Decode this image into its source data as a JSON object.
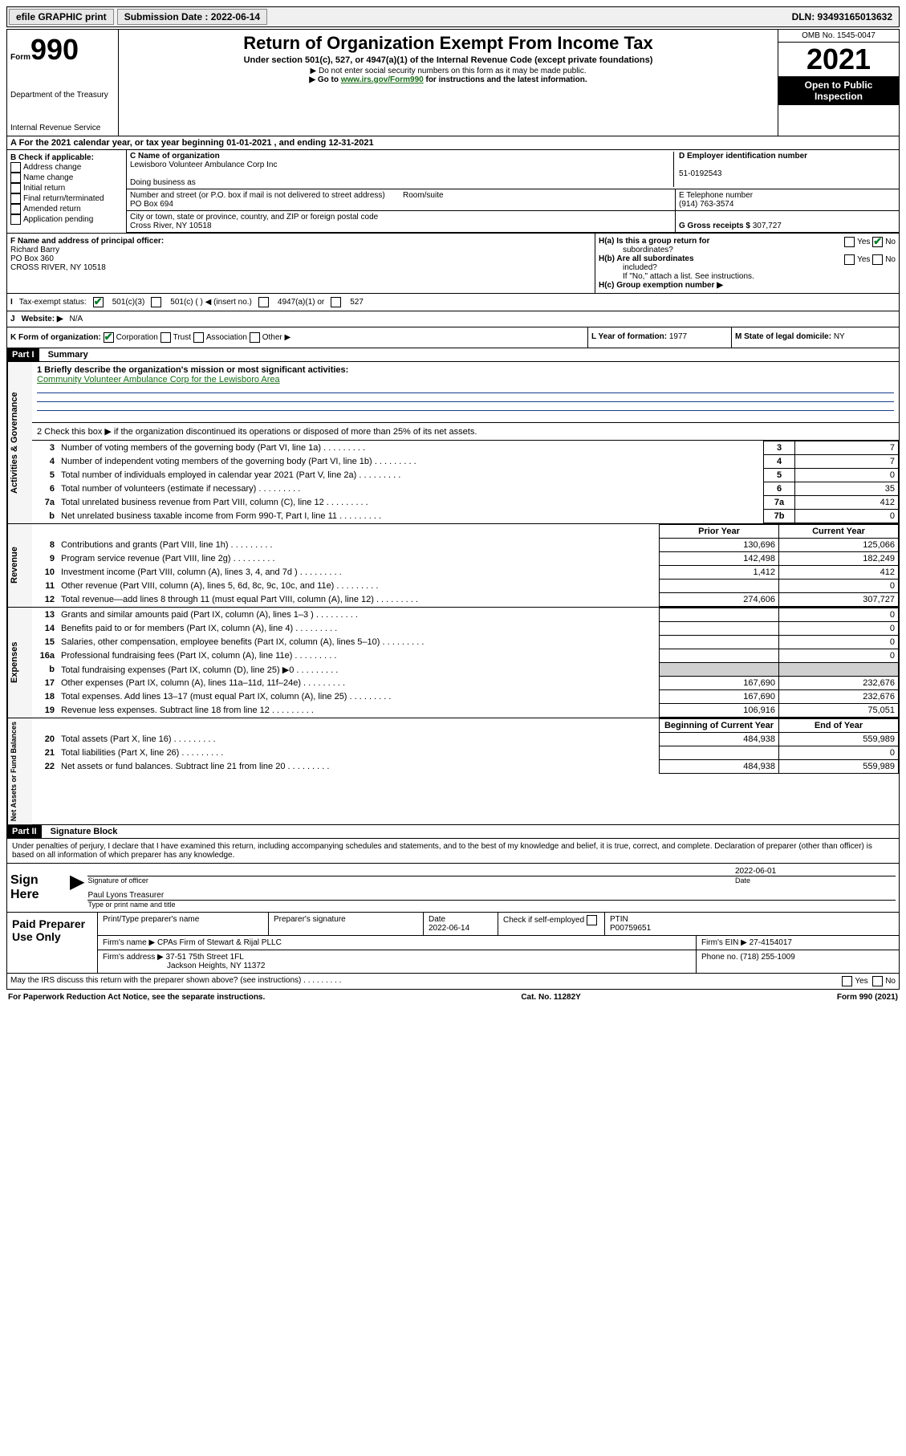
{
  "colors": {
    "text": "#000000",
    "background": "#ffffff",
    "link": "#1a6e1a",
    "rule": "#1a3c8c",
    "shade": "#d0d0d0",
    "check": "#0a7d2c",
    "bar_bg": "#f0f0f0"
  },
  "topbar": {
    "efile": "efile GRAPHIC print",
    "sub_label": "Submission Date :",
    "sub_date": "2022-06-14",
    "dln": "DLN: 93493165013632"
  },
  "header": {
    "form_word": "Form",
    "form_num": "990",
    "title": "Return of Organization Exempt From Income Tax",
    "subtitle": "Under section 501(c), 527, or 4947(a)(1) of the Internal Revenue Code (except private foundations)",
    "note1": "▶ Do not enter social security numbers on this form as it may be made public.",
    "note2_pre": "▶ Go to ",
    "note2_link": "www.irs.gov/Form990",
    "note2_post": " for instructions and the latest information.",
    "dept": "Department of the Treasury",
    "irs": "Internal Revenue Service",
    "omb": "OMB No. 1545-0047",
    "year": "2021",
    "inspect1": "Open to Public",
    "inspect2": "Inspection"
  },
  "row_a": "A For the 2021 calendar year, or tax year beginning 01-01-2021   , and ending 12-31-2021",
  "section_b": {
    "label": "B Check if applicable:",
    "items": [
      "Address change",
      "Name change",
      "Initial return",
      "Final return/terminated",
      "Amended return",
      "Application pending"
    ]
  },
  "section_c": {
    "name_label": "C Name of organization",
    "name": "Lewisboro Volunteer Ambulance Corp Inc",
    "dba_label": "Doing business as",
    "street_label": "Number and street (or P.O. box if mail is not delivered to street address)",
    "street": "PO Box 694",
    "room_label": "Room/suite",
    "city_label": "City or town, state or province, country, and ZIP or foreign postal code",
    "city": "Cross River, NY  10518"
  },
  "section_d": {
    "label": "D Employer identification number",
    "ein": "51-0192543"
  },
  "section_e": {
    "label": "E Telephone number",
    "phone": "(914) 763-3574"
  },
  "section_g": {
    "label": "G Gross receipts $",
    "amount": "307,727"
  },
  "section_f": {
    "label": "F Name and address of principal officer:",
    "name": "Richard Barry",
    "addr1": "PO Box 360",
    "addr2": "CROSS RIVER, NY  10518"
  },
  "section_h": {
    "ha1": "H(a)  Is this a group return for",
    "ha2": "subordinates?",
    "hb1": "H(b)  Are all subordinates",
    "hb2": "included?",
    "hb_note": "If \"No,\" attach a list. See instructions.",
    "hc": "H(c)  Group exemption number ▶",
    "yes": "Yes",
    "no": "No"
  },
  "row_i": {
    "label": "Tax-exempt status:",
    "opt1": "501(c)(3)",
    "opt2": "501(c) (   ) ◀ (insert no.)",
    "opt3": "4947(a)(1) or",
    "opt4": "527"
  },
  "row_j": {
    "label": "Website: ▶",
    "value": "N/A"
  },
  "row_k": {
    "label": "K Form of organization:",
    "opts": [
      "Corporation",
      "Trust",
      "Association",
      "Other ▶"
    ]
  },
  "row_l": {
    "label": "L Year of formation:",
    "value": "1977"
  },
  "row_m": {
    "label": "M State of legal domicile:",
    "value": "NY"
  },
  "part1": {
    "tag": "Part I",
    "title": "Summary"
  },
  "summary": {
    "line1_label": "1  Briefly describe the organization's mission or most significant activities:",
    "line1_text": "Community Volunteer Ambulance Corp for the Lewisboro Area",
    "line2": "2  Check this box ▶      if the organization discontinued its operations or disposed of more than 25% of its net assets.",
    "gov_lines": [
      {
        "n": "3",
        "desc": "Number of voting members of the governing body (Part VI, line 1a)",
        "box": "3",
        "val": "7"
      },
      {
        "n": "4",
        "desc": "Number of independent voting members of the governing body (Part VI, line 1b)",
        "box": "4",
        "val": "7"
      },
      {
        "n": "5",
        "desc": "Total number of individuals employed in calendar year 2021 (Part V, line 2a)",
        "box": "5",
        "val": "0"
      },
      {
        "n": "6",
        "desc": "Total number of volunteers (estimate if necessary)",
        "box": "6",
        "val": "35"
      },
      {
        "n": "7a",
        "desc": "Total unrelated business revenue from Part VIII, column (C), line 12",
        "box": "7a",
        "val": "412"
      },
      {
        "n": "b",
        "desc": "Net unrelated business taxable income from Form 990-T, Part I, line 11",
        "box": "7b",
        "val": "0"
      }
    ],
    "col_headers": {
      "prior": "Prior Year",
      "current": "Current Year"
    },
    "rev_lines": [
      {
        "n": "8",
        "desc": "Contributions and grants (Part VIII, line 1h)",
        "pr": "130,696",
        "cur": "125,066"
      },
      {
        "n": "9",
        "desc": "Program service revenue (Part VIII, line 2g)",
        "pr": "142,498",
        "cur": "182,249"
      },
      {
        "n": "10",
        "desc": "Investment income (Part VIII, column (A), lines 3, 4, and 7d )",
        "pr": "1,412",
        "cur": "412"
      },
      {
        "n": "11",
        "desc": "Other revenue (Part VIII, column (A), lines 5, 6d, 8c, 9c, 10c, and 11e)",
        "pr": "",
        "cur": "0"
      },
      {
        "n": "12",
        "desc": "Total revenue—add lines 8 through 11 (must equal Part VIII, column (A), line 12)",
        "pr": "274,606",
        "cur": "307,727"
      }
    ],
    "exp_lines": [
      {
        "n": "13",
        "desc": "Grants and similar amounts paid (Part IX, column (A), lines 1–3 )",
        "pr": "",
        "cur": "0"
      },
      {
        "n": "14",
        "desc": "Benefits paid to or for members (Part IX, column (A), line 4)",
        "pr": "",
        "cur": "0"
      },
      {
        "n": "15",
        "desc": "Salaries, other compensation, employee benefits (Part IX, column (A), lines 5–10)",
        "pr": "",
        "cur": "0"
      },
      {
        "n": "16a",
        "desc": "Professional fundraising fees (Part IX, column (A), line 11e)",
        "pr": "",
        "cur": "0"
      },
      {
        "n": "b",
        "desc": "Total fundraising expenses (Part IX, column (D), line 25) ▶0",
        "pr": "shade",
        "cur": "shade"
      },
      {
        "n": "17",
        "desc": "Other expenses (Part IX, column (A), lines 11a–11d, 11f–24e)",
        "pr": "167,690",
        "cur": "232,676"
      },
      {
        "n": "18",
        "desc": "Total expenses. Add lines 13–17 (must equal Part IX, column (A), line 25)",
        "pr": "167,690",
        "cur": "232,676"
      },
      {
        "n": "19",
        "desc": "Revenue less expenses. Subtract line 18 from line 12",
        "pr": "106,916",
        "cur": "75,051"
      }
    ],
    "na_headers": {
      "beg": "Beginning of Current Year",
      "end": "End of Year"
    },
    "na_lines": [
      {
        "n": "20",
        "desc": "Total assets (Part X, line 16)",
        "pr": "484,938",
        "cur": "559,989"
      },
      {
        "n": "21",
        "desc": "Total liabilities (Part X, line 26)",
        "pr": "",
        "cur": "0"
      },
      {
        "n": "22",
        "desc": "Net assets or fund balances. Subtract line 21 from line 20",
        "pr": "484,938",
        "cur": "559,989"
      }
    ],
    "vtabs": {
      "gov": "Activities & Governance",
      "rev": "Revenue",
      "exp": "Expenses",
      "na": "Net Assets or\nFund Balances"
    }
  },
  "part2": {
    "tag": "Part II",
    "title": "Signature Block"
  },
  "sig": {
    "declaration": "Under penalties of perjury, I declare that I have examined this return, including accompanying schedules and statements, and to the best of my knowledge and belief, it is true, correct, and complete. Declaration of preparer (other than officer) is based on all information of which preparer has any knowledge.",
    "sign_here": "Sign Here",
    "officer_sig": "Signature of officer",
    "date_label": "Date",
    "date": "2022-06-01",
    "name_title": "Paul Lyons Treasurer",
    "name_sub": "Type or print name and title"
  },
  "paid": {
    "title": "Paid Preparer Use Only",
    "cols": {
      "name": "Print/Type preparer's name",
      "sig": "Preparer's signature",
      "date": "Date",
      "check": "Check         if self-employed",
      "ptin": "PTIN"
    },
    "date": "2022-06-14",
    "ptin": "P00759651",
    "firm_name_label": "Firm's name     ▶",
    "firm_name": "CPAs Firm of Stewart & Rijal PLLC",
    "firm_ein_label": "Firm's EIN ▶",
    "firm_ein": "27-4154017",
    "firm_addr_label": "Firm's address ▶",
    "firm_addr1": "37-51 75th Street 1FL",
    "firm_addr2": "Jackson Heights, NY  11372",
    "phone_label": "Phone no.",
    "phone": "(718) 255-1009"
  },
  "footer": {
    "discuss": "May the IRS discuss this return with the preparer shown above? (see instructions)",
    "yes": "Yes",
    "no": "No",
    "pra": "For Paperwork Reduction Act Notice, see the separate instructions.",
    "cat": "Cat. No. 11282Y",
    "form": "Form 990 (2021)"
  }
}
